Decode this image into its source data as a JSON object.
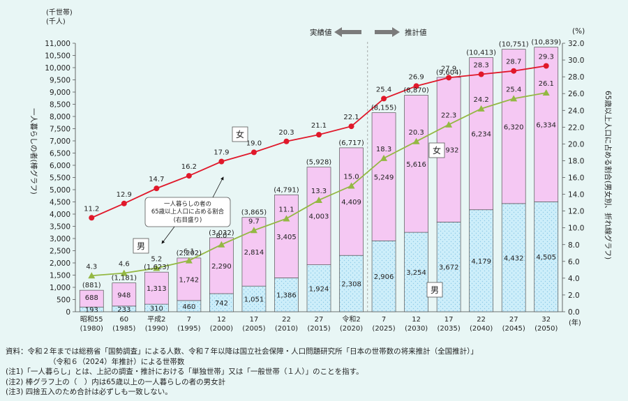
{
  "chart_data": {
    "type": "bar",
    "left_axis_unit_line1": "(千世帯)",
    "left_axis_unit_line2": "(千人)",
    "left_axis_label": "一人暮らしの者(棒グラフ)",
    "right_axis_unit": "(%)",
    "right_axis_label": "65歳以上人口に占める割合(男女別、折れ線グラフ)",
    "x_unit": "(年)",
    "ylim_left": [
      0,
      11000
    ],
    "ylim_right": [
      0,
      32.0
    ],
    "left_ticks": [
      "0",
      "500",
      "1,000",
      "1,500",
      "2,000",
      "2,500",
      "3,000",
      "3,500",
      "4,000",
      "4,500",
      "5,000",
      "5,500",
      "6,000",
      "6,500",
      "7,000",
      "7,500",
      "8,000",
      "8,500",
      "9,000",
      "9,500",
      "10,000",
      "10,500",
      "11,000"
    ],
    "right_ticks": [
      "0.0",
      "2.0",
      "4.0",
      "6.0",
      "8.0",
      "10.0",
      "12.0",
      "14.0",
      "16.0",
      "18.0",
      "20.0",
      "22.0",
      "24.0",
      "26.0",
      "28.0",
      "30.0",
      "32.0"
    ],
    "categories_era": [
      "昭和55",
      "60",
      "平成2",
      "7",
      "12",
      "17",
      "22",
      "27",
      "令和2",
      "7",
      "12",
      "17",
      "22",
      "27",
      "32"
    ],
    "categories_year": [
      "(1980)",
      "(1985)",
      "(1990)",
      "(1995)",
      "(2000)",
      "(2005)",
      "(2010)",
      "(2015)",
      "(2020)",
      "(2025)",
      "(2030)",
      "(2035)",
      "(2040)",
      "(2045)",
      "(2050)"
    ],
    "series": [
      {
        "name": "男",
        "values": [
          193,
          233,
          310,
          460,
          742,
          1051,
          1386,
          1924,
          2308,
          2906,
          3254,
          3672,
          4179,
          4432,
          4505
        ],
        "labels": [
          "193",
          "233",
          "310",
          "460",
          "742",
          "1,051",
          "1,386",
          "1,924",
          "2,308",
          "2,906",
          "3,254",
          "3,672",
          "4,179",
          "4,432",
          "4,505"
        ],
        "color": "#cfeefa"
      },
      {
        "name": "女",
        "values": [
          688,
          948,
          1313,
          1742,
          2290,
          2814,
          3405,
          4003,
          4409,
          5249,
          5616,
          5932,
          6234,
          6320,
          6334
        ],
        "labels": [
          "688",
          "948",
          "1,313",
          "1,742",
          "2,290",
          "2,814",
          "3,405",
          "4,003",
          "4,409",
          "5,249",
          "5,616",
          "5,932",
          "6,234",
          "6,320",
          "6,334"
        ],
        "color": "#f5c8f3"
      }
    ],
    "totals": [
      "(881)",
      "(1,181)",
      "(1,623)",
      "(2,202)",
      "(3,032)",
      "(3,865)",
      "(4,791)",
      "(5,928)",
      "(6,717)",
      "(8,155)",
      "(8,870)",
      "(9,604)",
      "(10,413)",
      "(10,751)",
      "(10,839)"
    ],
    "total_values": [
      881,
      1181,
      1623,
      2202,
      3032,
      3865,
      4791,
      5928,
      6717,
      8155,
      8870,
      9604,
      10413,
      10751,
      10839
    ],
    "lines": [
      {
        "name": "女",
        "values": [
          11.2,
          12.9,
          14.7,
          16.2,
          17.9,
          19.0,
          20.3,
          21.1,
          22.1,
          25.4,
          26.9,
          27.9,
          28.3,
          28.7,
          29.3
        ],
        "color": "#e0182a"
      },
      {
        "name": "男",
        "values": [
          4.3,
          4.6,
          5.2,
          6.1,
          8.0,
          9.7,
          11.1,
          13.3,
          15.0,
          18.3,
          20.3,
          22.3,
          24.2,
          25.4,
          26.1
        ],
        "color": "#94b843"
      }
    ],
    "line_labels_f": [
      "11.2",
      "12.9",
      "14.7",
      "16.2",
      "17.9",
      "19.0",
      "20.3",
      "21.1",
      "22.1",
      "25.4",
      "26.9",
      "27.9",
      "28.3",
      "28.7",
      "29.3"
    ],
    "line_labels_m": [
      "4.3",
      "4.6",
      "5.2",
      "6.1",
      "8.0",
      "9.7",
      "11.1",
      "13.3",
      "15.0",
      "18.3",
      "20.3",
      "22.3",
      "24.2",
      "25.4",
      "26.1"
    ],
    "annotations": {
      "jisseki": "実績値",
      "suikei": "推計値",
      "onna": "女",
      "otoko": "男",
      "callout_line1": "一人暮らしの者の",
      "callout_line2": "65歳以上人口に占める割合",
      "callout_line3": "(右目盛り)"
    },
    "grid": false
  },
  "notes": {
    "source": "資料：令和２年までは総務省「国勢調査」による人数、令和７年以降は国立社会保障・人口問題研究所「日本の世帯数の将来推計（全国推計）」",
    "source_cont": "（令和６（2024）年推計）による世帯数",
    "note1": "(注1)「一人暮らし」とは、上記の調査・推計における「単独世帯」又は「一般世帯（１人）」のことを指す。",
    "note2": "(注2) 棒グラフ上の（　）内は65歳以上の一人暮らしの者の男女計",
    "note3": "(注3) 四捨五入のため合計は必ずしも一致しない。"
  }
}
